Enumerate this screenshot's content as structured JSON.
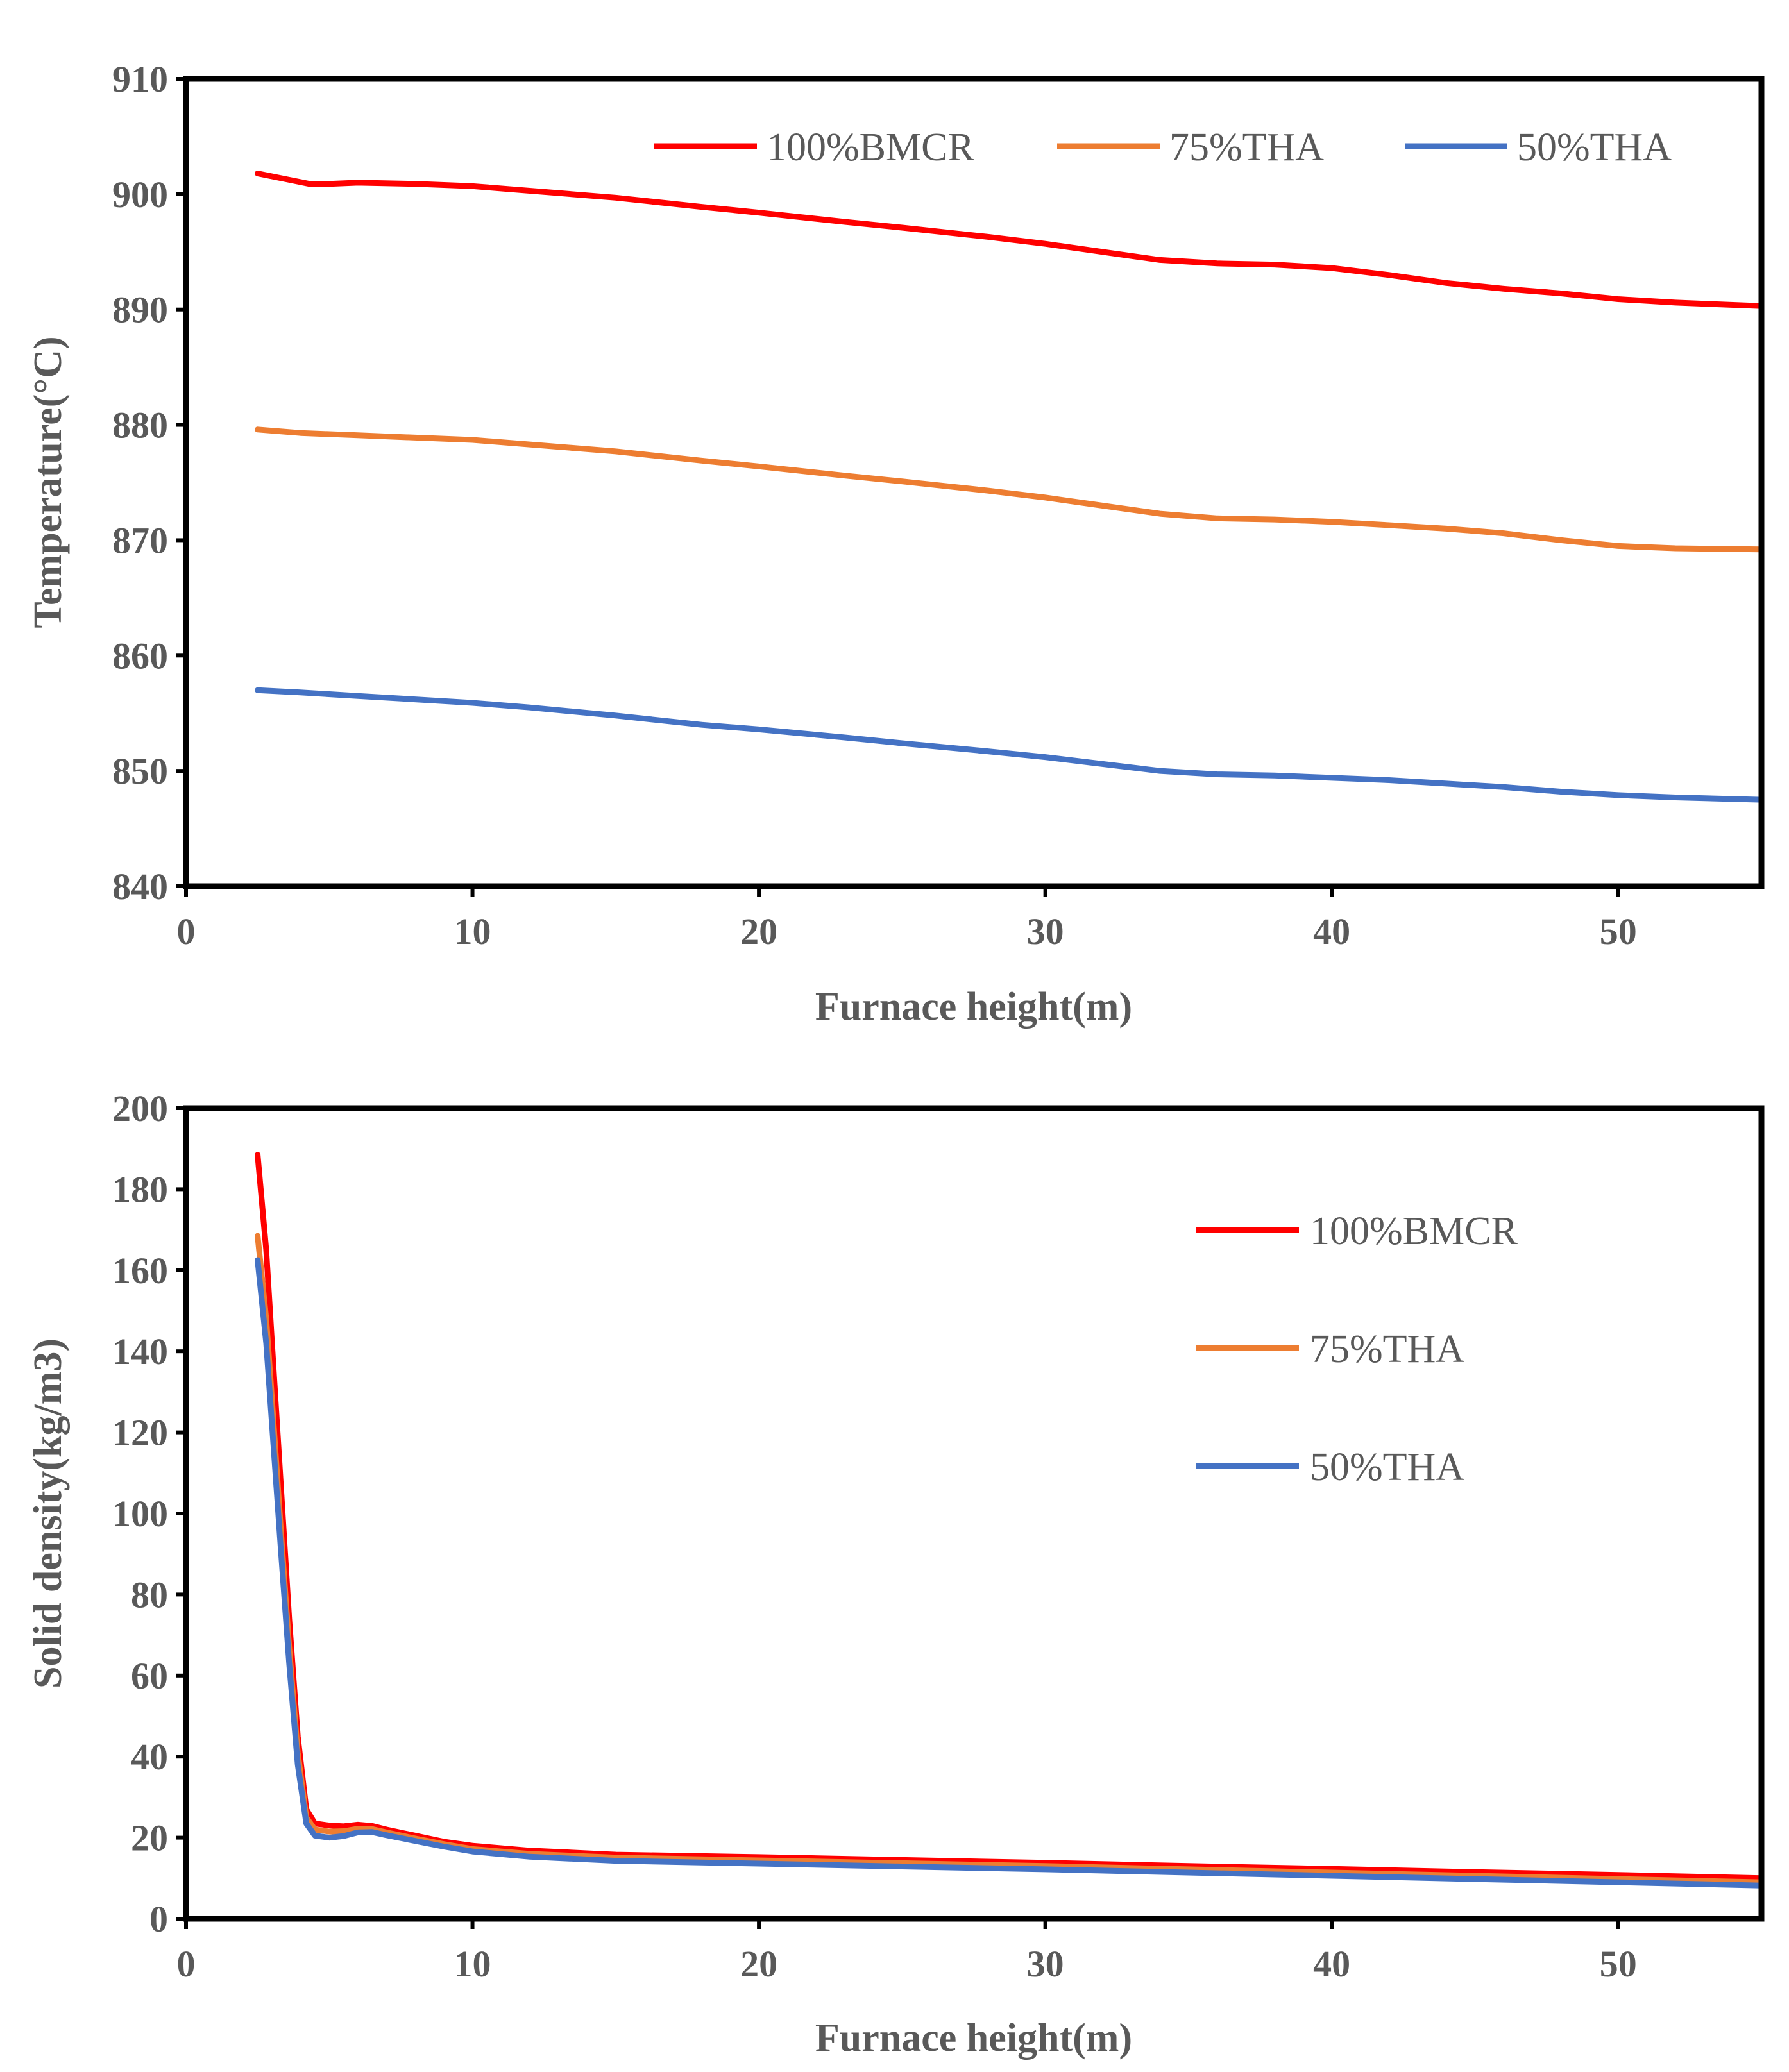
{
  "colors": {
    "100%BMCR": "#ff0000",
    "75%THA": "#ed7d31",
    "50%THA": "#4472c4",
    "text": "#595959",
    "axis": "#000000"
  },
  "chart_data": [
    {
      "type": "line",
      "title": "",
      "xlabel": "Furnace height(m)",
      "ylabel": "Temperature(°C)",
      "xlim": [
        0,
        55
      ],
      "ylim": [
        840,
        910
      ],
      "xticks": [
        0,
        10,
        20,
        30,
        40,
        50
      ],
      "yticks": [
        840,
        850,
        860,
        870,
        880,
        890,
        900,
        910
      ],
      "grid": false,
      "legend": "top, single row",
      "series": [
        {
          "name": "100%BMCR",
          "color": "#ff0000",
          "x": [
            2.5,
            3.5,
            4.3,
            5,
            6,
            8,
            10,
            12,
            15,
            18,
            20,
            23,
            25,
            28,
            30,
            32,
            34,
            36,
            38,
            40,
            42,
            44,
            46,
            48,
            50,
            52,
            55
          ],
          "y": [
            901.8,
            901.3,
            900.9,
            900.9,
            901.0,
            900.9,
            900.7,
            900.3,
            899.7,
            898.9,
            898.4,
            897.6,
            897.1,
            896.3,
            895.7,
            895.0,
            894.3,
            894.0,
            893.9,
            893.6,
            893.0,
            892.3,
            891.8,
            891.4,
            890.9,
            890.6,
            890.3
          ]
        },
        {
          "name": "75%THA",
          "color": "#ed7d31",
          "x": [
            2.5,
            4,
            6,
            8,
            10,
            12,
            15,
            18,
            20,
            23,
            25,
            28,
            30,
            32,
            34,
            36,
            38,
            40,
            42,
            44,
            46,
            48,
            50,
            52,
            55
          ],
          "y": [
            879.6,
            879.3,
            879.1,
            878.9,
            878.7,
            878.3,
            877.7,
            876.9,
            876.4,
            875.6,
            875.1,
            874.3,
            873.7,
            873.0,
            872.3,
            871.9,
            871.8,
            871.6,
            871.3,
            871.0,
            870.6,
            870.0,
            869.5,
            869.3,
            869.2
          ]
        },
        {
          "name": "50%THA",
          "color": "#4472c4",
          "x": [
            2.5,
            4,
            6,
            8,
            10,
            12,
            15,
            18,
            20,
            23,
            25,
            28,
            30,
            32,
            34,
            36,
            38,
            40,
            42,
            44,
            46,
            48,
            50,
            52,
            55
          ],
          "y": [
            857.0,
            856.8,
            856.5,
            856.2,
            855.9,
            855.5,
            854.8,
            854.0,
            853.6,
            852.9,
            852.4,
            851.7,
            851.2,
            850.6,
            850.0,
            849.7,
            849.6,
            849.4,
            849.2,
            848.9,
            848.6,
            848.2,
            847.9,
            847.7,
            847.5
          ]
        }
      ]
    },
    {
      "type": "line",
      "title": "",
      "xlabel": "Furnace height(m)",
      "ylabel": "Solid density(kg/m3)",
      "xlim": [
        0,
        55
      ],
      "ylim": [
        0,
        200
      ],
      "xticks": [
        0,
        10,
        20,
        30,
        40,
        50
      ],
      "yticks": [
        0,
        20,
        40,
        60,
        80,
        100,
        120,
        140,
        160,
        180,
        200
      ],
      "grid": false,
      "legend": "right, stacked vertically",
      "series": [
        {
          "name": "100%BMCR",
          "color": "#ff0000",
          "x": [
            2.5,
            2.8,
            3.0,
            3.3,
            3.6,
            3.9,
            4.2,
            4.5,
            5.0,
            5.5,
            6.0,
            6.5,
            7,
            8,
            9,
            10,
            12,
            15,
            20,
            25,
            30,
            35,
            40,
            45,
            50,
            55
          ],
          "y": [
            188.5,
            165,
            142,
            108,
            74,
            45,
            27,
            23.5,
            23,
            22.8,
            23.2,
            22.9,
            22,
            20.5,
            19,
            18,
            16.8,
            15.8,
            15.2,
            14.5,
            13.8,
            13,
            12.3,
            11.5,
            10.8,
            10
          ]
        },
        {
          "name": "75%THA",
          "color": "#ed7d31",
          "x": [
            2.5,
            2.8,
            3.0,
            3.3,
            3.6,
            3.9,
            4.2,
            4.5,
            5.0,
            5.5,
            6.0,
            6.5,
            7,
            8,
            9,
            10,
            12,
            15,
            20,
            25,
            30,
            35,
            40,
            45,
            50,
            55
          ],
          "y": [
            168.5,
            148,
            128,
            97,
            67,
            41,
            25,
            22,
            21.5,
            21.6,
            22.2,
            22.1,
            21.3,
            19.8,
            18.4,
            17.2,
            16.0,
            15.1,
            14.4,
            13.7,
            13.0,
            12.2,
            11.4,
            10.6,
            9.8,
            9.0
          ]
        },
        {
          "name": "50%THA",
          "color": "#4472c4",
          "x": [
            2.5,
            2.8,
            3.0,
            3.3,
            3.6,
            3.9,
            4.2,
            4.5,
            5.0,
            5.5,
            6.0,
            6.5,
            7,
            8,
            9,
            10,
            12,
            15,
            20,
            25,
            30,
            35,
            40,
            45,
            50,
            55
          ],
          "y": [
            162.5,
            142,
            122,
            92,
            63,
            38,
            23.5,
            20.5,
            20.0,
            20.4,
            21.3,
            21.4,
            20.6,
            19.2,
            17.8,
            16.6,
            15.3,
            14.3,
            13.6,
            12.9,
            12.2,
            11.4,
            10.6,
            9.8,
            9.0,
            8.2
          ]
        }
      ]
    }
  ]
}
